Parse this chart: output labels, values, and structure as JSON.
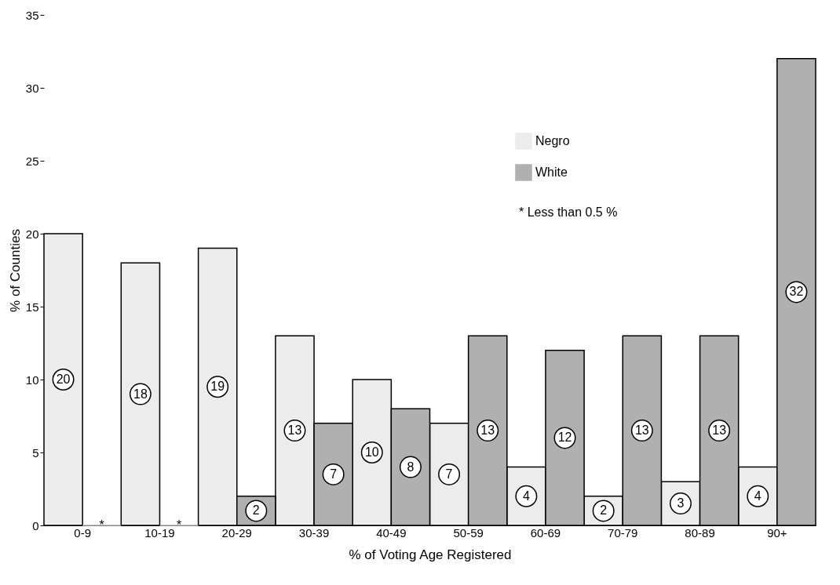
{
  "chart_data": {
    "type": "bar",
    "xlabel": "% of Voting Age Registered",
    "ylabel": "% of Counties",
    "categories": [
      "0-9",
      "10-19",
      "20-29",
      "30-39",
      "40-49",
      "50-59",
      "60-69",
      "70-79",
      "80-89",
      "90+"
    ],
    "series": [
      {
        "name": "Negro",
        "color": "#ececec",
        "values": [
          20,
          18,
          19,
          13,
          10,
          7,
          4,
          2,
          3,
          4
        ],
        "value_labels": [
          "20",
          "18",
          "19",
          "13",
          "10",
          "7",
          "4",
          "2",
          "3",
          "4"
        ]
      },
      {
        "name": "White",
        "color": "#b0b0b0",
        "values": [
          0,
          0,
          2,
          7,
          8,
          13,
          12,
          13,
          13,
          32
        ],
        "value_labels": [
          "*",
          "*",
          "2",
          "7",
          "8",
          "13",
          "12",
          "13",
          "13",
          "32"
        ]
      }
    ],
    "ylim": [
      0,
      35
    ],
    "yticks": [
      0,
      5,
      10,
      15,
      20,
      25,
      30,
      35
    ],
    "grid": false,
    "legend": "top right",
    "annotations": [
      "* Less than 0.5 %"
    ]
  }
}
